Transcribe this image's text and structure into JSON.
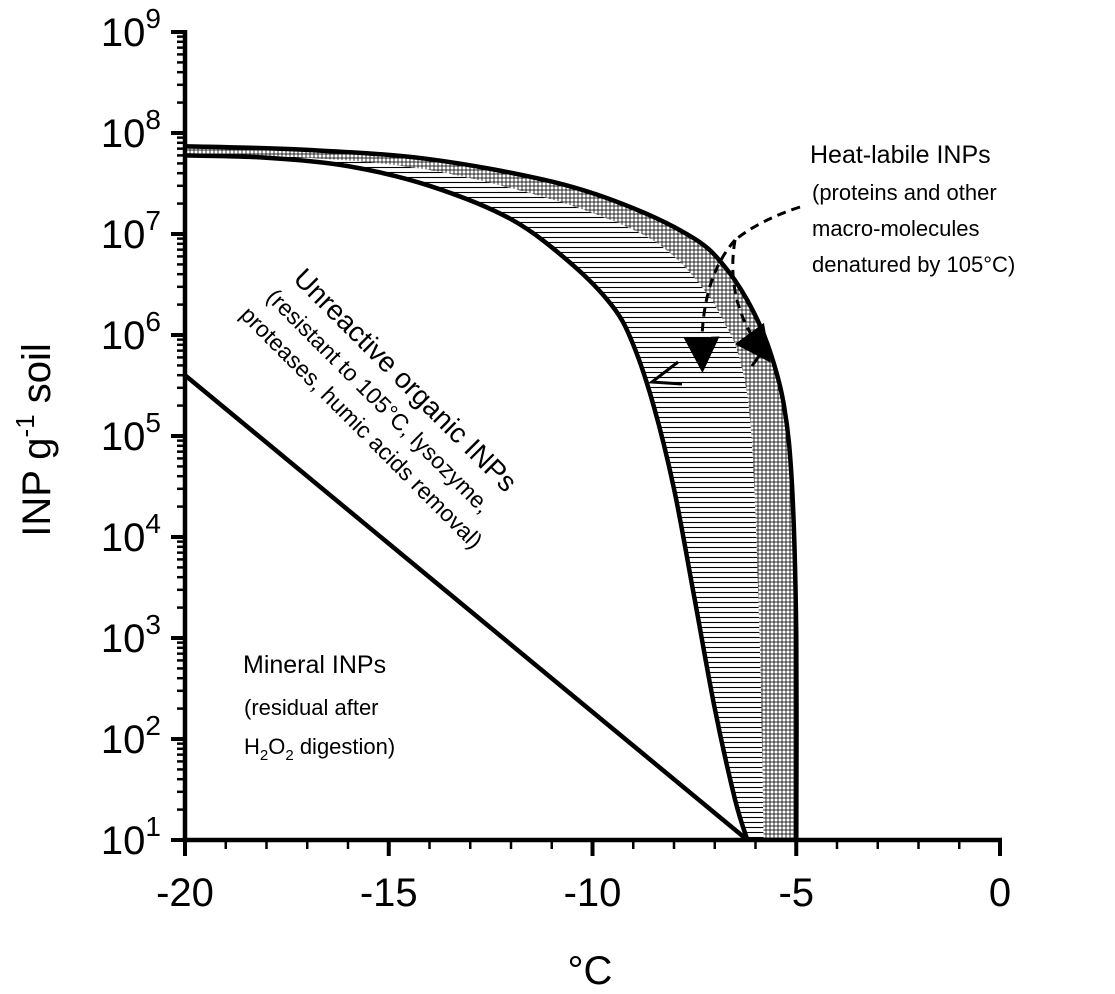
{
  "chart_data": {
    "type": "area",
    "xlabel": "°C",
    "ylabel": {
      "main": "INP g",
      "sup": "-1",
      "rest": " soil"
    },
    "x_range": [
      -20,
      0
    ],
    "x_ticks": [
      -20,
      -15,
      -10,
      -5,
      0
    ],
    "x_tick_labels": [
      "-20",
      "-15",
      "-10",
      "-5",
      "0"
    ],
    "y_scale": "log",
    "y_range": [
      10,
      1000000000
    ],
    "y_ticks": [
      {
        "value": 10,
        "base": "10",
        "exp": "1"
      },
      {
        "value": 100,
        "base": "10",
        "exp": "2"
      },
      {
        "value": 1000,
        "base": "10",
        "exp": "3"
      },
      {
        "value": 10000,
        "base": "10",
        "exp": "4"
      },
      {
        "value": 100000,
        "base": "10",
        "exp": "5"
      },
      {
        "value": 1000000,
        "base": "10",
        "exp": "6"
      },
      {
        "value": 10000000,
        "base": "10",
        "exp": "7"
      },
      {
        "value": 100000000,
        "base": "10",
        "exp": "8"
      },
      {
        "value": 1000000000,
        "base": "10",
        "exp": "9"
      }
    ],
    "grid": false,
    "series": [
      {
        "role": "mineral",
        "points": [
          [
            -20,
            400000
          ],
          [
            -6.2,
            10
          ]
        ]
      },
      {
        "role": "unreactive-organic-upper",
        "points": [
          [
            -20,
            60000000
          ],
          [
            -18,
            57000000
          ],
          [
            -16,
            47000000
          ],
          [
            -14,
            30000000
          ],
          [
            -12,
            14000000
          ],
          [
            -10.5,
            5000000
          ],
          [
            -9.5,
            1900000
          ],
          [
            -9,
            800000
          ],
          [
            -8.5,
            200000
          ],
          [
            -8,
            30000
          ],
          [
            -7.5,
            2500
          ],
          [
            -7,
            200
          ],
          [
            -6.5,
            25
          ],
          [
            -6.2,
            10
          ]
        ]
      },
      {
        "role": "heat-labile-lower",
        "points": [
          [
            -20,
            62000000
          ],
          [
            -17,
            57000000
          ],
          [
            -14,
            43000000
          ],
          [
            -11,
            22000000
          ],
          [
            -9,
            11000000
          ],
          [
            -8,
            6000000
          ],
          [
            -7.2,
            2600000
          ],
          [
            -6.8,
            1400000
          ],
          [
            -6.4,
            600000
          ],
          [
            -6.1,
            100000
          ],
          [
            -5.9,
            1000
          ],
          [
            -5.8,
            10
          ]
        ]
      },
      {
        "role": "heat-labile-upper",
        "points": [
          [
            -20,
            74000000
          ],
          [
            -17,
            68000000
          ],
          [
            -14,
            55000000
          ],
          [
            -11,
            33000000
          ],
          [
            -9,
            18000000
          ],
          [
            -7.5,
            9000000
          ],
          [
            -6.8,
            5000000
          ],
          [
            -6.2,
            2200000
          ],
          [
            -5.7,
            800000
          ],
          [
            -5.3,
            200000
          ],
          [
            -5.1,
            30000
          ],
          [
            -5,
            1000
          ],
          [
            -5,
            10
          ]
        ]
      }
    ],
    "annotations": {
      "heat_labile": {
        "title": "Heat-labile INPs",
        "lines": [
          "(proteins and other",
          "macro-molecules",
          "denatured by 105°C)"
        ]
      },
      "unreactive": {
        "title": "Unreactive organic INPs",
        "lines": [
          "(resistant to 105°C, lysozyme,",
          "proteases, humic acids removal)"
        ]
      },
      "mineral": {
        "title": "Mineral INPs",
        "line1": "(residual after",
        "h": "H",
        "sub2a": "2",
        "o": "O",
        "sub2b": "2",
        "rest": " digestion)"
      }
    }
  }
}
